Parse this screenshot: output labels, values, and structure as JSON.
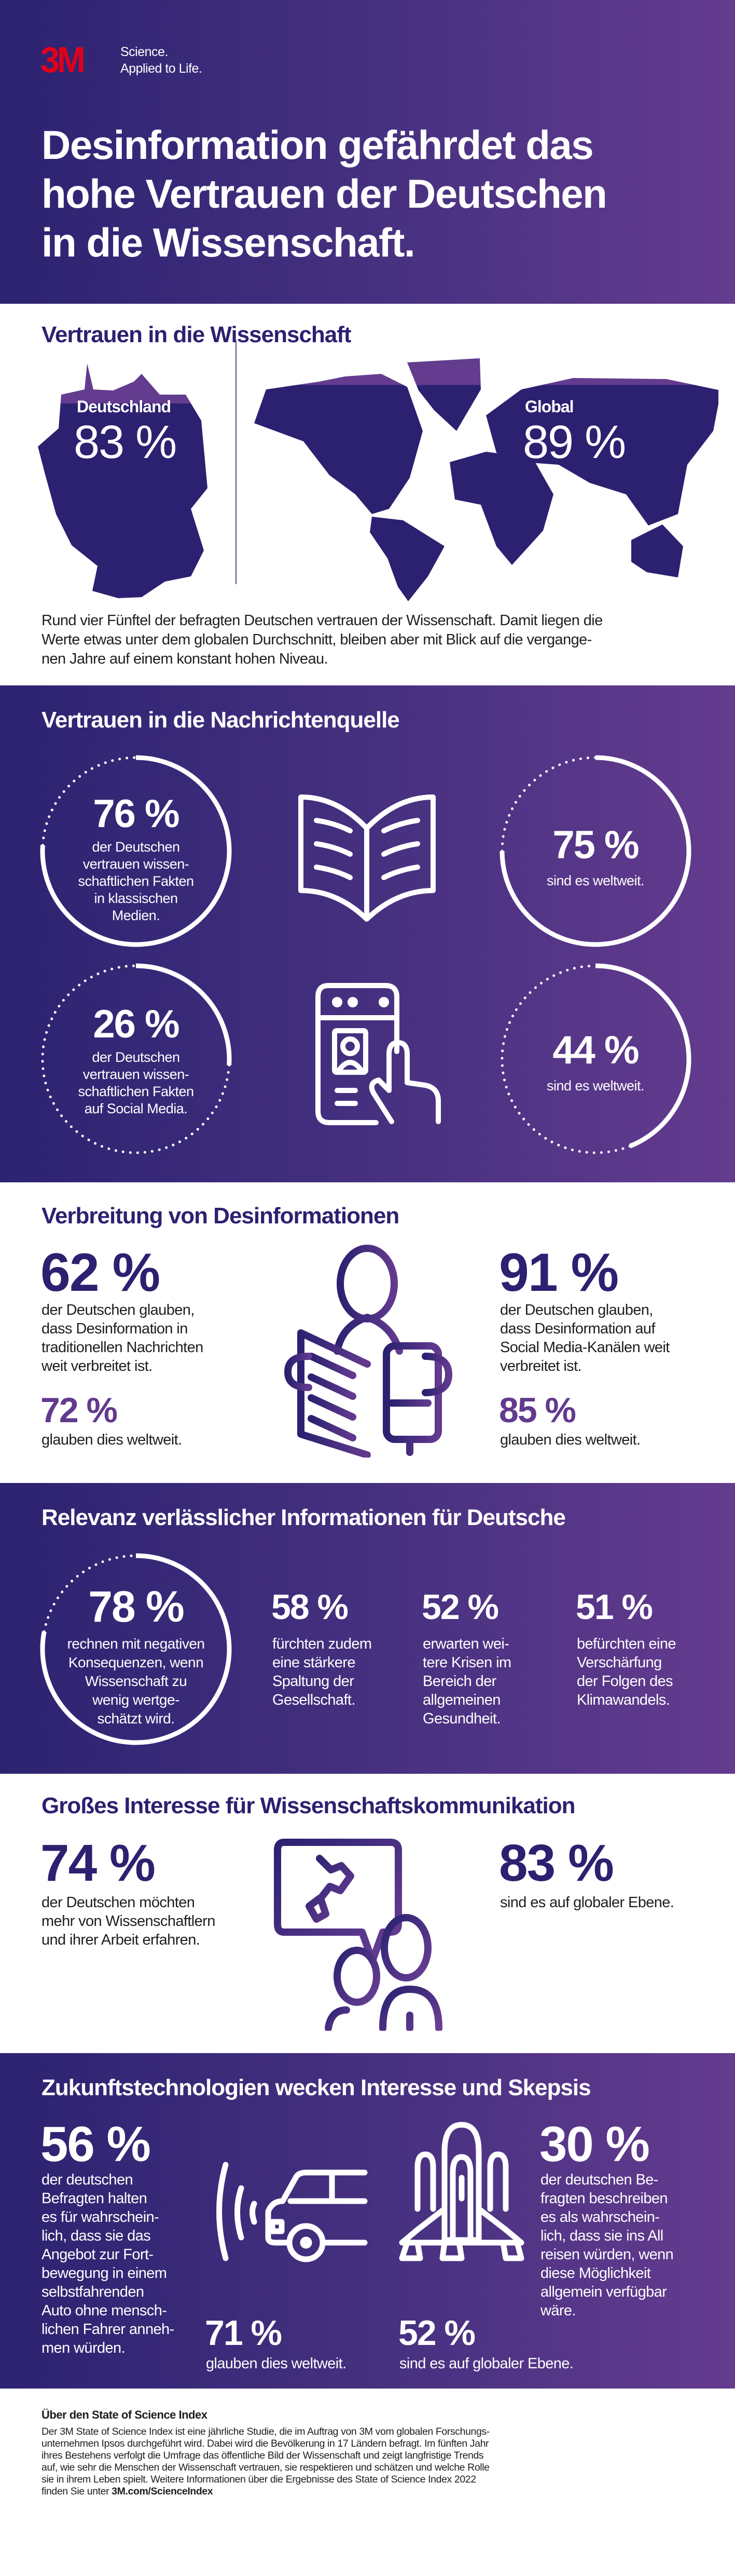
{
  "colors": {
    "navy": "#2b2170",
    "purple": "#623a8e",
    "light_purple": "#6a3f95",
    "brand_red": "#e1001a"
  },
  "header": {
    "logo": "3M",
    "tagline_1": "Science.",
    "tagline_2": "Applied to Life.",
    "title": "Desinformation gefährdet das\nhohe Vertrauen der Deutschen\nin die Wissenschaft."
  },
  "trust": {
    "heading": "Vertrauen in die Wissenschaft",
    "germany": {
      "label": "Deutschland",
      "value": "83 %",
      "pct": 83
    },
    "global": {
      "label": "Global",
      "value": "89 %",
      "pct": 89
    },
    "paragraph": "Rund vier Fünftel der befragten Deutschen vertrauen der Wissenschaft. Damit liegen die\nWerte etwas unter dem globalen Durchschnitt, bleiben aber mit Blick auf die vergange-\nnen Jahre auf einem konstant hohen Niveau."
  },
  "sources": {
    "heading": "Vertrauen in die Nachrichtenquelle",
    "classic_de": {
      "value": "76 %",
      "pct": 76,
      "text": "der Deutschen\nvertrauen wissen-\nschaftlichen Fakten\nin klassischen\nMedien."
    },
    "classic_global": {
      "value": "75 %",
      "pct": 75,
      "text": "sind es weltweit."
    },
    "social_de": {
      "value": "26 %",
      "pct": 26,
      "text": "der Deutschen\nvertrauen wissen-\nschaftlichen Fakten\nauf Social Media."
    },
    "social_global": {
      "value": "44 %",
      "pct": 44,
      "text": "sind es weltweit."
    }
  },
  "spread": {
    "heading": "Verbreitung von Desinformationen",
    "left": {
      "value": "62 %",
      "text": "der Deutschen glauben,\ndass Desinformation in\ntraditionellen Nachrichten\nweit verbreitet ist.",
      "global_value": "72 %",
      "global_text": "glauben dies weltweit."
    },
    "right": {
      "value": "91 %",
      "text": "der Deutschen glauben,\ndass Desinformation auf\nSocial Media-Kanälen weit\nverbreitet ist.",
      "global_value": "85 %",
      "global_text": "glauben dies weltweit."
    }
  },
  "relevance": {
    "heading": "Relevanz verlässlicher Informationen für Deutsche",
    "main": {
      "value": "78 %",
      "pct": 78,
      "text": "rechnen mit negativen\nKonsequenzen, wenn\nWissenschaft zu\nwenig wertge-\nschätzt wird."
    },
    "stats": [
      {
        "value": "58 %",
        "text": "fürchten zudem\neine stärkere\nSpaltung der\nGesellschaft."
      },
      {
        "value": "52 %",
        "text": "erwarten wei-\ntere Krisen im\nBereich der\nallgemeinen\nGesundheit."
      },
      {
        "value": "51 %",
        "text": "befürchten eine\nVerschärfung\nder Folgen des\nKlimawandels."
      }
    ]
  },
  "interest": {
    "heading": "Großes Interesse für Wissenschaftskommunikation",
    "left": {
      "value": "74 %",
      "text": "der Deutschen möchten\nmehr von Wissenschaftlern\nund ihrer Arbeit erfahren."
    },
    "right": {
      "value": "83 %",
      "text": "sind es auf globaler Ebene."
    }
  },
  "future": {
    "heading": "Zukunftstechnologien wecken Interesse und Skepsis",
    "car": {
      "value": "56 %",
      "text": "der deutschen\nBefragten halten\nes für wahrschein-\nlich, dass sie das\nAngebot zur Fort-\nbewegung in einem\nselbstfahrenden\nAuto ohne mensch-\nlichen Fahrer anneh-\nmen würden.",
      "global_value": "71 %",
      "global_text": "glauben dies weltweit."
    },
    "space": {
      "value": "30 %",
      "text": "der deutschen Be-\nfragten beschreiben\nes als wahrschein-\nlich, dass sie ins All\nreisen würden, wenn\ndiese Möglichkeit\nallgemein verfügbar\nwäre.",
      "global_value": "52 %",
      "global_text": "sind es auf globaler Ebene."
    }
  },
  "about": {
    "heading": "Über den State of Science Index",
    "body": "Der 3M State of Science Index ist eine jährliche Studie, die im Auftrag von 3M vom globalen Forschungs-\nunternehmen Ipsos durchgeführt wird. Dabei wird die Bevölkerung in 17 Ländern befragt. Im fünften Jahr\nihres Bestehens verfolgt die Umfrage das öffentliche Bild der Wissenschaft und zeigt langfristige Trends\nauf, wie sehr die Menschen der Wissenschaft vertrauen, sie respektieren und schätzen und welche Rolle\nsie in ihrem Leben spielt. Weitere Informationen über die Ergebnisse des State of Science Index 2022\nfinden Sie unter ",
    "link": "3M.com/ScienceIndex"
  }
}
